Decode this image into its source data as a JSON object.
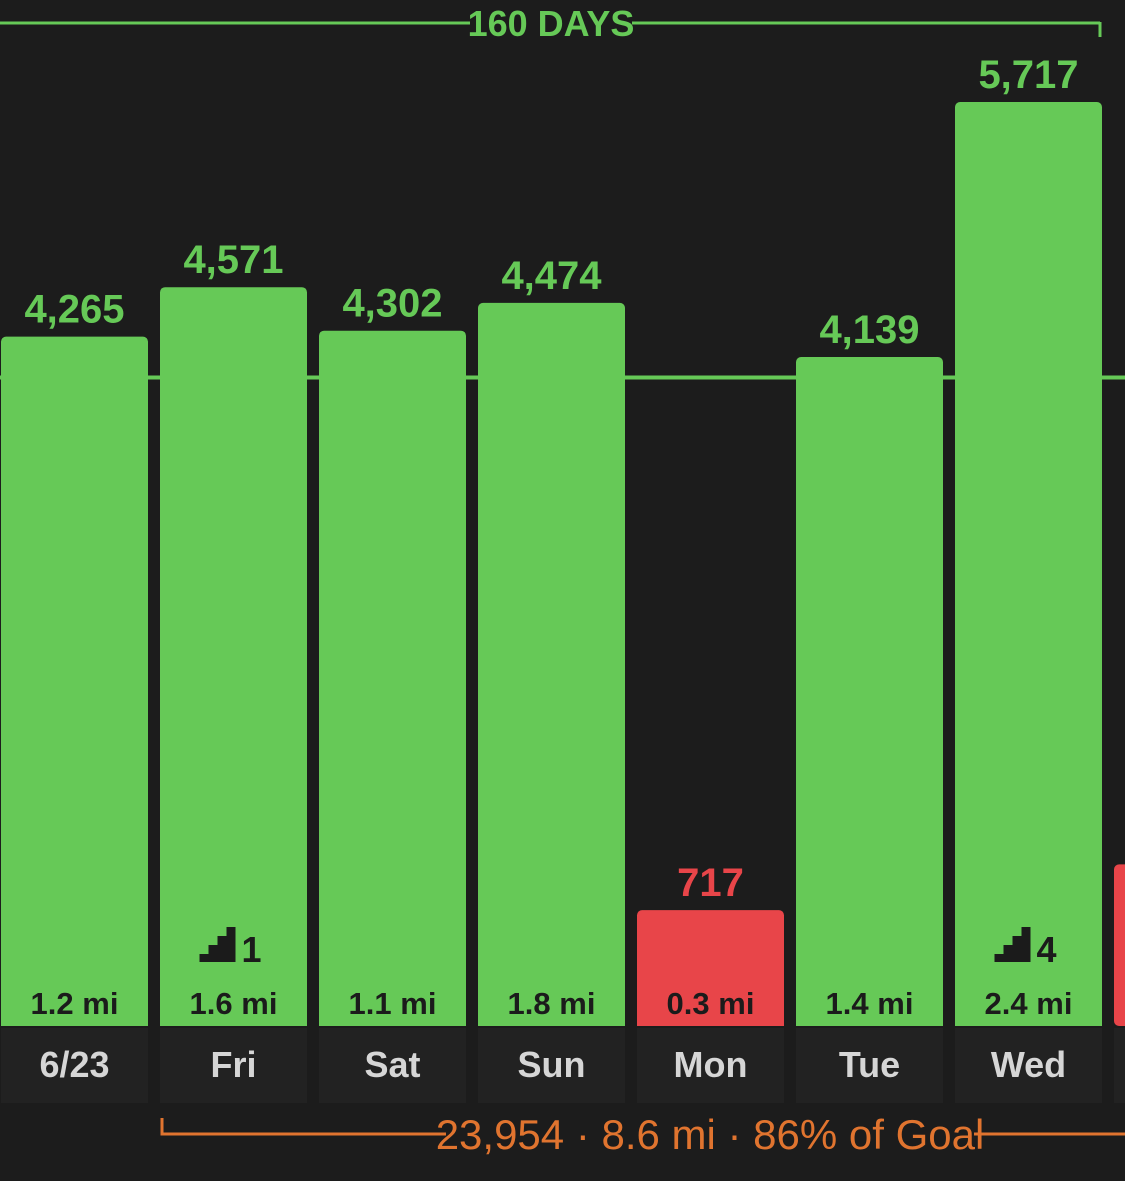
{
  "colors": {
    "background": "#1c1c1c",
    "label_band": "#222222",
    "goal_met": "#66c957",
    "goal_missed": "#e84549",
    "summary": "#e0742f",
    "day_text": "#d6d6d6",
    "bar_text": "#1b1b1b"
  },
  "streak": {
    "label": "160 DAYS"
  },
  "summary": {
    "text": "23,954 · 8.6 mi · 86% of Goal"
  },
  "chart_data": {
    "type": "bar",
    "categories": [
      "6/23",
      "Fri",
      "Sat",
      "Sun",
      "Mon",
      "Tue",
      "Wed"
    ],
    "series": [
      {
        "values": [
          4265,
          4571,
          4302,
          4474,
          717,
          4139,
          5717
        ],
        "value_labels": [
          "4,265",
          "4,571",
          "4,302",
          "4,474",
          "717",
          "4,139",
          "5,717"
        ],
        "distances": [
          "1.2 mi",
          "1.6 mi",
          "1.1 mi",
          "1.8 mi",
          "0.3 mi",
          "1.4 mi",
          "2.4 mi"
        ],
        "flights_climbed": [
          null,
          1,
          null,
          null,
          null,
          null,
          4
        ],
        "status": [
          "met",
          "met",
          "met",
          "met",
          "missed",
          "met",
          "met"
        ]
      }
    ],
    "goal": 4000,
    "partial_next_bar": {
      "status": "missed",
      "value": 1000
    },
    "ylim": [
      0,
      6200
    ],
    "legend": "none",
    "grid": false
  }
}
